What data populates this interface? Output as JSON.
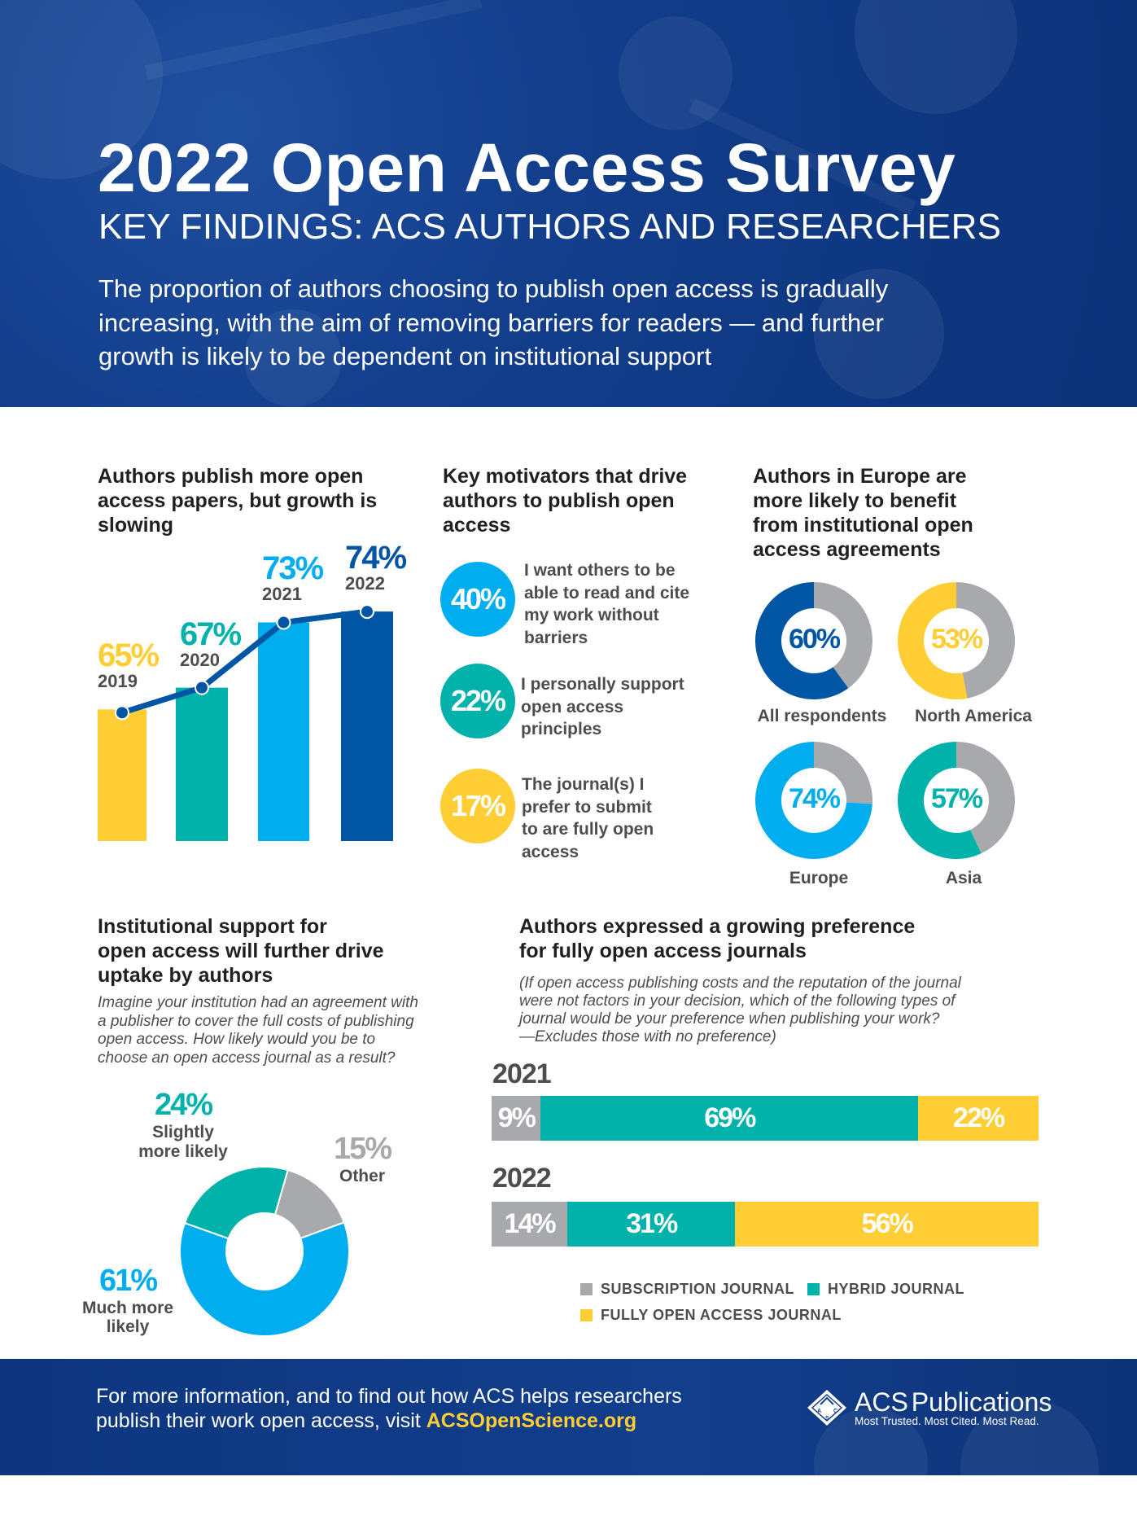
{
  "header": {
    "title": "2022 Open Access Survey",
    "subtitle": "KEY FINDINGS: ACS AUTHORS AND RESEARCHERS",
    "intro_lines": [
      "The proportion of authors choosing to publish open access is gradually",
      "increasing, with the aim of removing barriers for readers — and further",
      "growth is likely to be dependent on institutional support"
    ]
  },
  "colors": {
    "yellow": "#ffcd34",
    "teal": "#00b2a9",
    "light_blue": "#00aeef",
    "dark_blue": "#0055a5",
    "gray": "#a7a9ac",
    "header_bg": "#123e8c"
  },
  "chart_data": [
    {
      "type": "bar",
      "title": "Authors publish more open access papers, but growth is slowing",
      "categories": [
        "2019",
        "2020",
        "2021",
        "2022"
      ],
      "values": [
        65,
        67,
        73,
        74
      ],
      "labels": [
        "65%",
        "67%",
        "73%",
        "74%"
      ],
      "colors": [
        "#ffcd34",
        "#00b2a9",
        "#00aeef",
        "#0055a5"
      ],
      "overlay_line": true,
      "grid": false
    },
    {
      "type": "bar",
      "title": "Key motivators that drive authors to publish open access",
      "categories": [
        "I want others to be able to read and cite my work without barriers",
        "I personally support open access principles",
        "The journal(s) I prefer to submit to are fully open access"
      ],
      "values": [
        40,
        22,
        17
      ],
      "labels": [
        "40%",
        "22%",
        "17%"
      ],
      "colors": [
        "#00aeef",
        "#00b2a9",
        "#ffcd34"
      ],
      "text_lines": [
        [
          "I want others to be",
          "able to read and cite",
          "my work without",
          "barriers"
        ],
        [
          "I personally support",
          "open access",
          "principles"
        ],
        [
          "The journal(s) I",
          "prefer to submit",
          "to are fully open",
          "access"
        ]
      ]
    },
    {
      "type": "pie",
      "title_lines": [
        "Authors in Europe are",
        "more likely to benefit",
        "from institutional open",
        "access agreements"
      ],
      "donuts": [
        {
          "name": "All respondents",
          "value": 60,
          "label": "60%",
          "color": "#0055a5"
        },
        {
          "name": "North America",
          "value": 53,
          "label": "53%",
          "color": "#ffcd34"
        },
        {
          "name": "Europe",
          "value": 74,
          "label": "74%",
          "color": "#00aeef"
        },
        {
          "name": "Asia",
          "value": 57,
          "label": "57%",
          "color": "#00b2a9"
        }
      ],
      "remainder_color": "#a7a9ac"
    },
    {
      "type": "pie",
      "title_lines": [
        "Institutional support for",
        "open access will further drive",
        "uptake by authors"
      ],
      "question_lines": [
        "Imagine your institution had an agreement with",
        "a publisher to cover the full costs of publishing",
        "open access. How likely would you be to",
        "choose an open access journal as a result?"
      ],
      "slices": [
        {
          "name": "Other",
          "value": 15,
          "label": "15%",
          "color": "#a7a9ac"
        },
        {
          "name": "Much more likely",
          "value": 61,
          "label": "61%",
          "color": "#00aeef",
          "name_lines": [
            "Much more",
            "likely"
          ]
        },
        {
          "name": "Slightly more likely",
          "value": 24,
          "label": "24%",
          "color": "#00b2a9",
          "name_lines": [
            "Slightly",
            "more likely"
          ]
        }
      ]
    },
    {
      "type": "bar",
      "orientation": "horizontal-stacked",
      "title_lines": [
        "Authors expressed a growing preference",
        "for fully open access journals"
      ],
      "note_lines": [
        "(If open access publishing costs and the reputation of the journal",
        "were not factors in your decision, which of the following types of",
        "journal would be your preference when publishing your work?",
        "—Excludes those with no preference)"
      ],
      "categories": [
        "2021",
        "2022"
      ],
      "series": [
        {
          "name": "SUBSCRIPTION JOURNAL",
          "values": [
            9,
            14
          ],
          "labels": [
            "9%",
            "14%"
          ],
          "color": "#a7a9ac"
        },
        {
          "name": "HYBRID JOURNAL",
          "values": [
            69,
            31
          ],
          "labels": [
            "69%",
            "31%"
          ],
          "color": "#00b2a9"
        },
        {
          "name": "FULLY OPEN ACCESS JOURNAL",
          "values": [
            22,
            56
          ],
          "labels": [
            "22%",
            "56%"
          ],
          "color": "#ffcd34"
        }
      ],
      "legend": "bottom"
    }
  ],
  "footer": {
    "line1": "For more information, and to find out how ACS helps researchers",
    "line2_prefix": "publish their work open access, visit ",
    "link": "ACSOpenScience.org",
    "logo_name": "ACS Publications",
    "logo_acs": "ACS",
    "logo_pub": "Publications",
    "tagline": "Most Trusted. Most Cited. Most Read."
  }
}
